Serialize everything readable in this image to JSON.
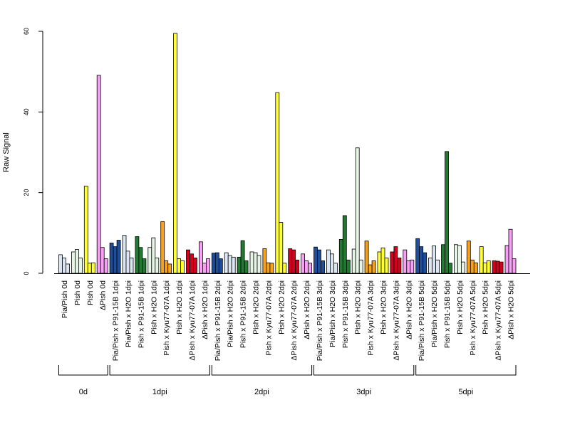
{
  "chart_data": {
    "type": "bar",
    "ylabel": "Raw Signal",
    "xlabel": "",
    "ylim": [
      0,
      60
    ],
    "yticks": [
      0,
      20,
      40,
      60
    ],
    "bars_per_category": 3,
    "categories": [
      {
        "label": "Pia/Pish 0d",
        "color": "#dce6f2",
        "values": [
          4.6,
          3.8,
          2.3
        ]
      },
      {
        "label": "Pish 0d",
        "color": "#e6f5e6",
        "values": [
          5.3,
          5.9,
          3.8
        ]
      },
      {
        "label": "Pish 0d",
        "color": "#ffff33",
        "values": [
          21.6,
          2.5,
          2.6
        ]
      },
      {
        "label": "ΔPish 0d",
        "color": "#f7a0f5",
        "values": [
          49.1,
          6.4,
          3.6
        ]
      },
      {
        "label": "Pia/Pish x P91-15B 1dpi",
        "color": "#1f4e9c",
        "values": [
          7.5,
          6.6,
          8.2
        ]
      },
      {
        "label": "Pia/Pish x H2O 1dpi",
        "color": "#dce6f2",
        "values": [
          9.4,
          5.5,
          3.8
        ]
      },
      {
        "label": "Pish x P91-15B 1dpi",
        "color": "#227a33",
        "values": [
          9.1,
          6.4,
          3.6
        ]
      },
      {
        "label": "Pish x H2O 1dpi",
        "color": "#e6f5e6",
        "values": [
          6.4,
          8.8,
          3.8
        ]
      },
      {
        "label": "Pish x Kyu77-07A 1dpi",
        "color": "#f7a21c",
        "values": [
          12.8,
          3.1,
          2.3
        ]
      },
      {
        "label": "Pish x H2O 1dpi",
        "color": "#ffff33",
        "values": [
          59.5,
          3.6,
          3.1
        ]
      },
      {
        "label": "ΔPish x Kyu77-07A 1dpi",
        "color": "#d40020",
        "values": [
          5.8,
          4.8,
          3.8
        ]
      },
      {
        "label": "ΔPish x H2O 1dpi",
        "color": "#f7a0f5",
        "values": [
          7.8,
          2.5,
          3.6
        ]
      },
      {
        "label": "Pia/Pish x P91-15B 2dpi",
        "color": "#1f4e9c",
        "values": [
          5.0,
          5.1,
          3.6
        ]
      },
      {
        "label": "Pia/Pish x H2O 2dpi",
        "color": "#dce6f2",
        "values": [
          5.1,
          4.4,
          4.0
        ]
      },
      {
        "label": "Pish x P91-15B 2dpi",
        "color": "#227a33",
        "values": [
          4.0,
          8.1,
          3.1
        ]
      },
      {
        "label": "Pish x H2O 2dpi",
        "color": "#e6f5e6",
        "values": [
          5.3,
          5.1,
          4.4
        ]
      },
      {
        "label": "Pish x Kyu77-07A 2dpi",
        "color": "#f7a21c",
        "values": [
          6.1,
          2.6,
          2.5
        ]
      },
      {
        "label": "Pish x H2O 2dpi",
        "color": "#ffff33",
        "values": [
          44.8,
          12.6,
          2.5
        ]
      },
      {
        "label": "ΔPish x Kyu77-07A 2dpi",
        "color": "#d40020",
        "values": [
          6.1,
          5.8,
          3.3
        ]
      },
      {
        "label": "ΔPish x H2O 2dpi",
        "color": "#f7a0f5",
        "values": [
          4.8,
          3.1,
          2.5
        ]
      },
      {
        "label": "Pia/Pish x P91-15B 3dpi",
        "color": "#1f4e9c",
        "values": [
          6.5,
          5.8,
          3.1
        ]
      },
      {
        "label": "Pia/Pish x H2O 3dpi",
        "color": "#dce6f2",
        "values": [
          5.8,
          4.8,
          2.5
        ]
      },
      {
        "label": "Pish x P91-15B 3dpi",
        "color": "#227a33",
        "values": [
          8.4,
          14.3,
          3.3
        ]
      },
      {
        "label": "Pish x H2O 3dpi",
        "color": "#e6f5e6",
        "values": [
          6.0,
          31.1,
          3.3
        ]
      },
      {
        "label": "Pish x Kyu77-07A 3dpi",
        "color": "#f7a21c",
        "values": [
          8.0,
          2.1,
          3.1
        ]
      },
      {
        "label": "Pish x H2O 3dpi",
        "color": "#ffff33",
        "values": [
          5.3,
          6.3,
          3.8
        ]
      },
      {
        "label": "ΔPish x Kyu77-07A 3dpi",
        "color": "#d40020",
        "values": [
          5.3,
          6.6,
          3.8
        ]
      },
      {
        "label": "ΔPish x H2O 3dpi",
        "color": "#f7a0f5",
        "values": [
          5.8,
          3.1,
          3.3
        ]
      },
      {
        "label": "Pia/Pish x P91-15B 5dpi",
        "color": "#1f4e9c",
        "values": [
          8.6,
          6.6,
          5.1
        ]
      },
      {
        "label": "Pia/Pish x H2O 5dpi",
        "color": "#dce6f2",
        "values": [
          3.8,
          6.8,
          3.3
        ]
      },
      {
        "label": "Pish x P91-15B 5dpi",
        "color": "#227a33",
        "values": [
          7.1,
          30.2,
          2.5
        ]
      },
      {
        "label": "Pish x H2O 5dpi",
        "color": "#e6f5e6",
        "values": [
          7.1,
          6.9,
          2.8
        ]
      },
      {
        "label": "Pish x Kyu77-07A 5dpi",
        "color": "#f7a21c",
        "values": [
          8.0,
          3.3,
          2.6
        ]
      },
      {
        "label": "Pish x H2O 5dpi",
        "color": "#ffff33",
        "values": [
          6.6,
          2.6,
          3.1
        ]
      },
      {
        "label": "ΔPish x Kyu77-07A 5dpi",
        "color": "#d40020",
        "values": [
          3.1,
          3.0,
          2.8
        ]
      },
      {
        "label": "ΔPish x H2O 5dpi",
        "color": "#f7a0f5",
        "values": [
          6.9,
          10.9,
          3.6
        ]
      }
    ],
    "groups": [
      {
        "label": "0d",
        "first": 0,
        "last": 3
      },
      {
        "label": "1dpi",
        "first": 4,
        "last": 11
      },
      {
        "label": "2dpi",
        "first": 12,
        "last": 19
      },
      {
        "label": "3dpi",
        "first": 20,
        "last": 27
      },
      {
        "label": "5dpi",
        "first": 28,
        "last": 35
      }
    ]
  }
}
